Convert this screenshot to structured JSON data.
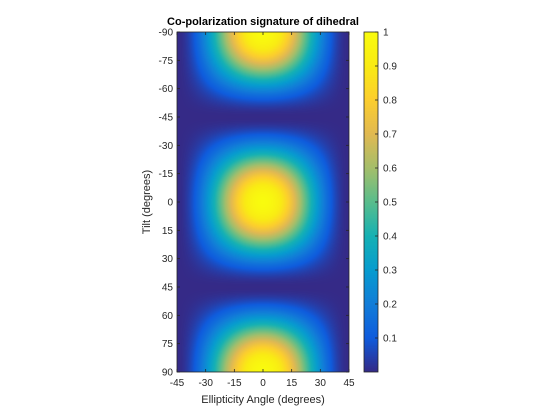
{
  "chart_data": {
    "type": "heatmap",
    "title": "Co-polarization signature of dihedral",
    "xlabel": "Ellipticity Angle (degrees)",
    "ylabel": "Tilt (degrees)",
    "xlim": [
      -45,
      45
    ],
    "ylim": [
      -90,
      90
    ],
    "y_direction": "reverse",
    "x_ticks": [
      -45,
      -30,
      -15,
      0,
      15,
      30,
      45
    ],
    "y_ticks": [
      -90,
      -75,
      -60,
      -45,
      -30,
      -15,
      0,
      15,
      30,
      45,
      60,
      75,
      90
    ],
    "colormap": "parula",
    "clim": [
      0,
      1
    ],
    "colorbar_ticks": [
      0.1,
      0.2,
      0.3,
      0.4,
      0.5,
      0.6,
      0.7,
      0.8,
      0.9,
      1
    ],
    "minima": [
      {
        "ellipticity": 0,
        "tilt": -45,
        "value": 0
      },
      {
        "ellipticity": 0,
        "tilt": 45,
        "value": 0
      }
    ],
    "grid": false
  }
}
